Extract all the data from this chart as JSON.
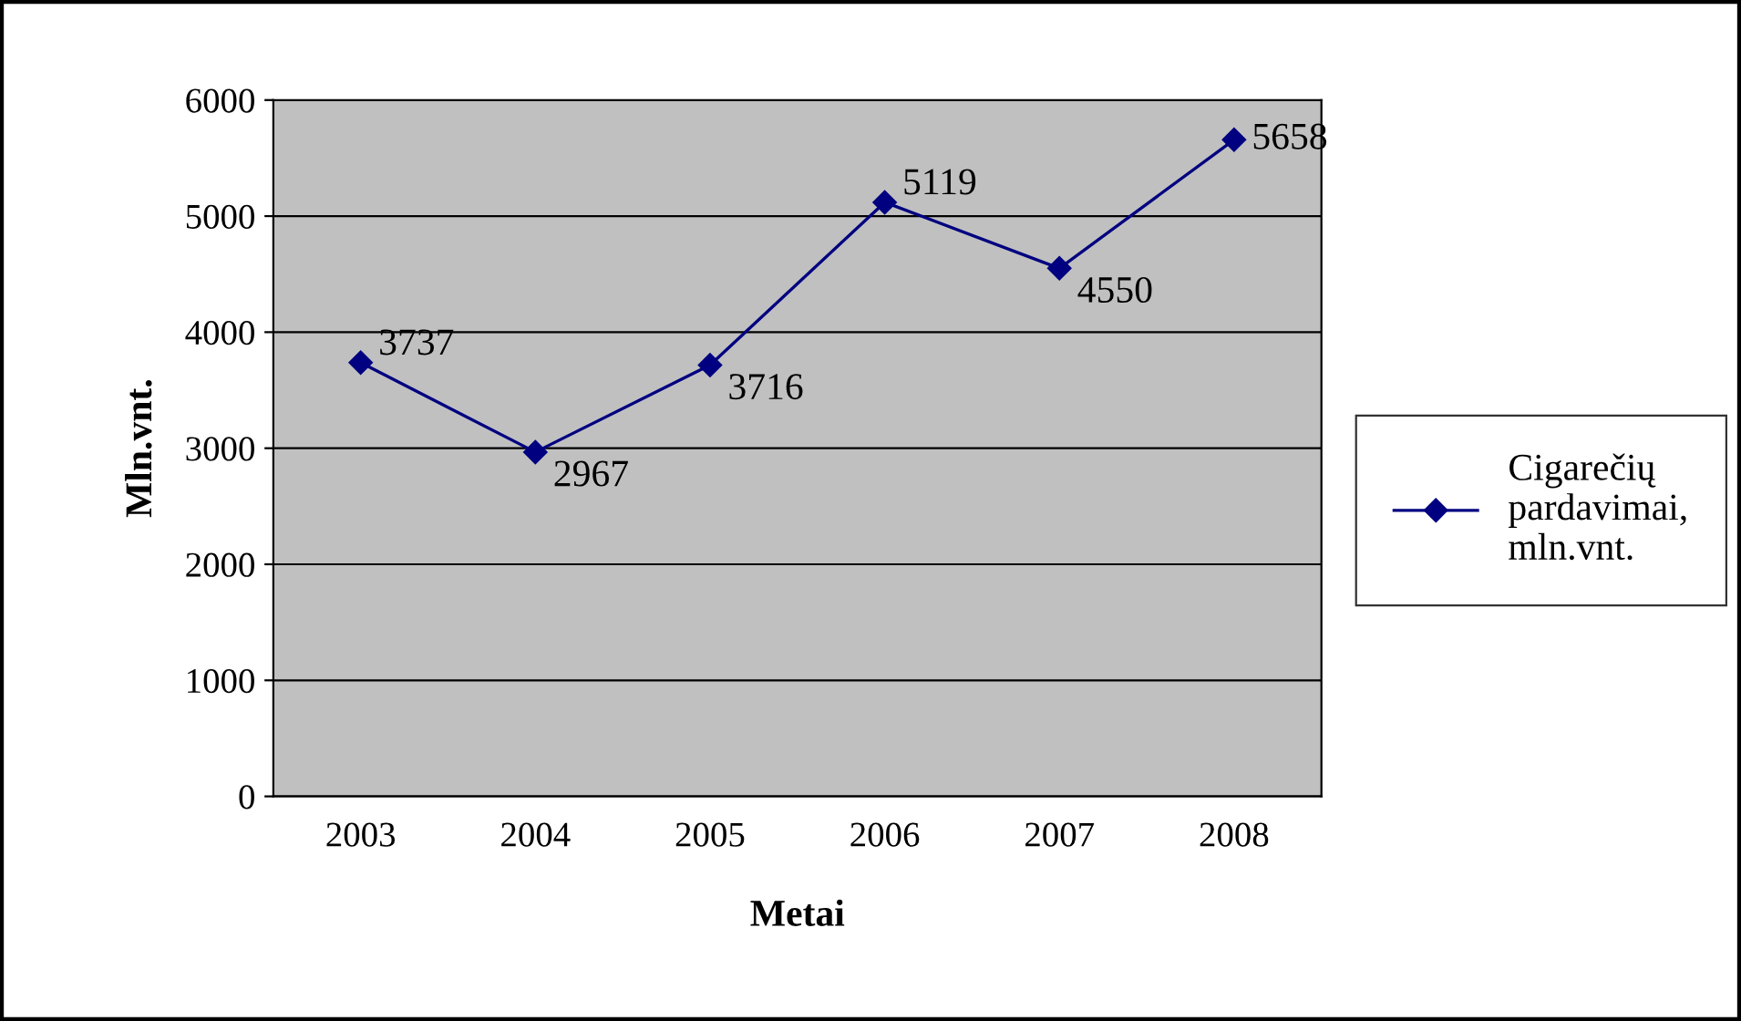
{
  "chart_data": {
    "type": "line",
    "xlabel": "Metai",
    "ylabel": "Mln.vnt.",
    "categories": [
      "2003",
      "2004",
      "2005",
      "2006",
      "2007",
      "2008"
    ],
    "series": [
      {
        "name": "Cigarečių pardavimai, mln.vnt.",
        "color": "#000080",
        "values": [
          3737,
          2967,
          3716,
          5119,
          4550,
          5658
        ]
      }
    ],
    "ylim": [
      0,
      6000
    ],
    "yticks": [
      0,
      1000,
      2000,
      3000,
      4000,
      5000,
      6000
    ],
    "grid": "y",
    "legend": "right",
    "marker": "diamond",
    "line_style": "solid",
    "data_labels": true
  }
}
